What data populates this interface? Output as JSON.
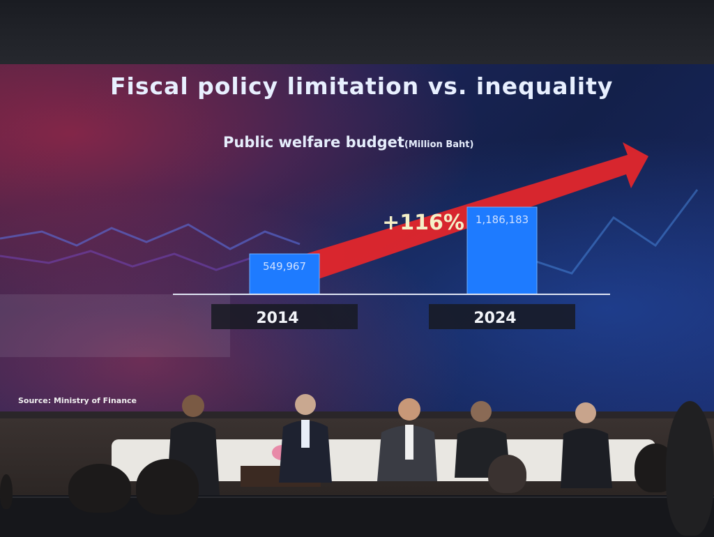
{
  "slide": {
    "title": "Fiscal policy limitation vs. inequality",
    "subtitle": "Public welfare budget",
    "subtitle_unit": "(Million Baht)",
    "growth_label": "+116%",
    "source": "Source: Ministry of Finance"
  },
  "chart_data": {
    "type": "bar",
    "title": "Public welfare budget(Million Baht)",
    "categories": [
      "2014",
      "2024"
    ],
    "values": [
      549967,
      1186183
    ],
    "value_labels": [
      "549,967",
      "1,186,183"
    ],
    "annotation": "+116%",
    "bar_color": "#1e7bff",
    "arrow_color": "#e8262a"
  }
}
